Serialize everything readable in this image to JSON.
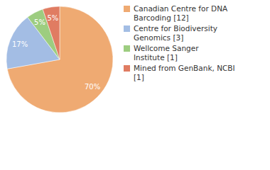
{
  "chart_data": {
    "type": "pie",
    "categories": [
      "Canadian Centre for DNA Barcoding [12]",
      "Centre for Biodiversity Genomics [3]",
      "Wellcome Sanger Institute [1]",
      "Mined from GenBank, NCBI [1]"
    ],
    "values": [
      70,
      17,
      5,
      5
    ],
    "value_labels": [
      "70%",
      "17%",
      "5%",
      "5%"
    ],
    "colors": [
      "#efaa72",
      "#a3bde4",
      "#9dcd80",
      "#e07c62"
    ],
    "data_labels": true,
    "legend": "top-right"
  }
}
